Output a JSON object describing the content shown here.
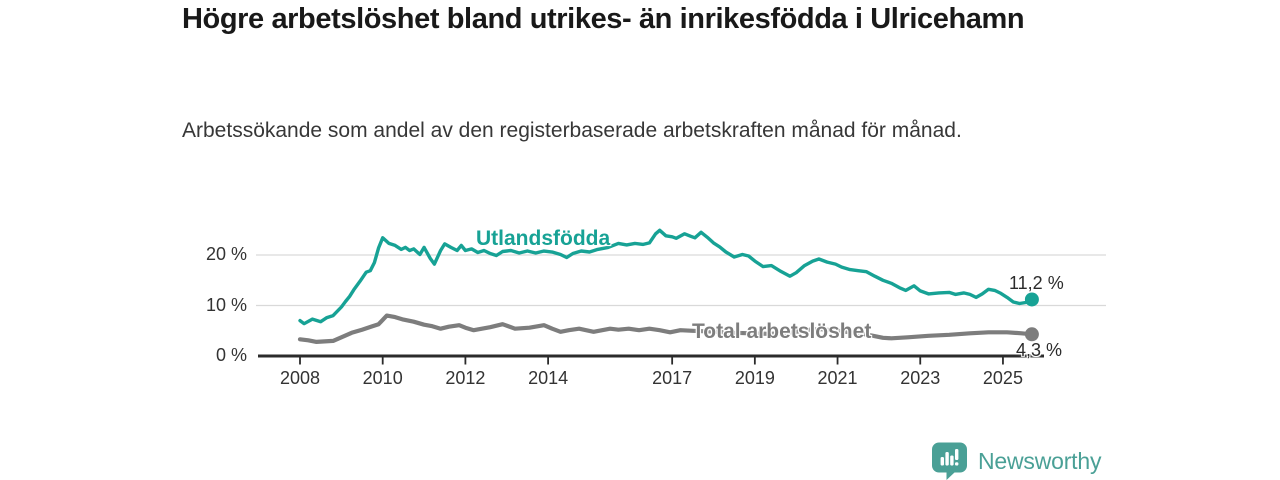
{
  "title": "Högre arbetslöshet bland utrikes- än inrikesfödda i Ulricehamn",
  "subtitle": "Arbetssökande som andel av den registerbaserade arbetskraften månad för månad.",
  "chart_data": {
    "type": "line",
    "title": "Högre arbetslöshet bland utrikes- än inrikesfödda i Ulricehamn",
    "subtitle": "Arbetssökande som andel av den registerbaserade arbetskraften månad för månad.",
    "unit": "percent of registered labour force",
    "legend_position": "inline-labels-on-lines",
    "grid": true,
    "x_axis": {
      "range": [
        2007.9,
        2025.85
      ],
      "ticks": [
        {
          "v": 2008,
          "label": "2008"
        },
        {
          "v": 2010,
          "label": "2010"
        },
        {
          "v": 2012,
          "label": "2012"
        },
        {
          "v": 2014,
          "label": "2014"
        },
        {
          "v": 2017,
          "label": "2017"
        },
        {
          "v": 2019,
          "label": "2019"
        },
        {
          "v": 2021,
          "label": "2021"
        },
        {
          "v": 2023,
          "label": "2023"
        },
        {
          "v": 2025,
          "label": "2025"
        }
      ]
    },
    "y_axis": {
      "range": [
        0,
        26
      ],
      "ticks": [
        {
          "v": 0,
          "label": "0 %"
        },
        {
          "v": 10,
          "label": "10 %"
        },
        {
          "v": 20,
          "label": "20 %"
        }
      ]
    },
    "series": [
      {
        "name": "Utlandsfödda",
        "color": "#17a295",
        "end_label": "11,2 %",
        "end_value": 11.2,
        "points": [
          [
            2008.0,
            7.0
          ],
          [
            2008.1,
            6.4
          ],
          [
            2008.3,
            7.3
          ],
          [
            2008.5,
            6.8
          ],
          [
            2008.65,
            7.6
          ],
          [
            2008.8,
            8.0
          ],
          [
            2009.0,
            9.7
          ],
          [
            2009.1,
            10.8
          ],
          [
            2009.2,
            11.8
          ],
          [
            2009.3,
            13.1
          ],
          [
            2009.45,
            14.8
          ],
          [
            2009.6,
            16.6
          ],
          [
            2009.7,
            16.9
          ],
          [
            2009.8,
            18.5
          ],
          [
            2009.9,
            21.4
          ],
          [
            2010.0,
            23.4
          ],
          [
            2010.15,
            22.3
          ],
          [
            2010.3,
            21.9
          ],
          [
            2010.45,
            21.1
          ],
          [
            2010.55,
            21.5
          ],
          [
            2010.65,
            20.9
          ],
          [
            2010.75,
            21.2
          ],
          [
            2010.9,
            20.1
          ],
          [
            2011.0,
            21.5
          ],
          [
            2011.15,
            19.3
          ],
          [
            2011.25,
            18.2
          ],
          [
            2011.4,
            20.9
          ],
          [
            2011.5,
            22.2
          ],
          [
            2011.65,
            21.5
          ],
          [
            2011.8,
            20.9
          ],
          [
            2011.9,
            21.9
          ],
          [
            2012.0,
            20.9
          ],
          [
            2012.15,
            21.2
          ],
          [
            2012.3,
            20.5
          ],
          [
            2012.45,
            20.9
          ],
          [
            2012.6,
            20.3
          ],
          [
            2012.75,
            19.9
          ],
          [
            2012.9,
            20.7
          ],
          [
            2013.1,
            20.9
          ],
          [
            2013.3,
            20.4
          ],
          [
            2013.5,
            20.8
          ],
          [
            2013.7,
            20.4
          ],
          [
            2013.9,
            20.8
          ],
          [
            2014.1,
            20.6
          ],
          [
            2014.3,
            20.1
          ],
          [
            2014.45,
            19.5
          ],
          [
            2014.6,
            20.3
          ],
          [
            2014.8,
            20.8
          ],
          [
            2015.0,
            20.6
          ],
          [
            2015.2,
            21.1
          ],
          [
            2015.45,
            21.5
          ],
          [
            2015.7,
            22.3
          ],
          [
            2015.9,
            22.0
          ],
          [
            2016.1,
            22.3
          ],
          [
            2016.3,
            22.1
          ],
          [
            2016.45,
            22.4
          ],
          [
            2016.6,
            24.2
          ],
          [
            2016.7,
            24.9
          ],
          [
            2016.85,
            23.8
          ],
          [
            2017.0,
            23.6
          ],
          [
            2017.1,
            23.3
          ],
          [
            2017.3,
            24.2
          ],
          [
            2017.45,
            23.7
          ],
          [
            2017.55,
            23.4
          ],
          [
            2017.7,
            24.5
          ],
          [
            2017.85,
            23.5
          ],
          [
            2018.0,
            22.4
          ],
          [
            2018.15,
            21.6
          ],
          [
            2018.3,
            20.6
          ],
          [
            2018.5,
            19.6
          ],
          [
            2018.7,
            20.1
          ],
          [
            2018.85,
            19.8
          ],
          [
            2019.0,
            18.8
          ],
          [
            2019.2,
            17.7
          ],
          [
            2019.4,
            17.9
          ],
          [
            2019.6,
            16.9
          ],
          [
            2019.85,
            15.8
          ],
          [
            2020.0,
            16.5
          ],
          [
            2020.2,
            17.9
          ],
          [
            2020.4,
            18.8
          ],
          [
            2020.55,
            19.2
          ],
          [
            2020.75,
            18.6
          ],
          [
            2020.95,
            18.2
          ],
          [
            2021.1,
            17.6
          ],
          [
            2021.3,
            17.1
          ],
          [
            2021.5,
            16.9
          ],
          [
            2021.7,
            16.7
          ],
          [
            2021.9,
            15.8
          ],
          [
            2022.1,
            15.0
          ],
          [
            2022.3,
            14.4
          ],
          [
            2022.5,
            13.5
          ],
          [
            2022.65,
            13.0
          ],
          [
            2022.85,
            13.9
          ],
          [
            2023.0,
            12.9
          ],
          [
            2023.2,
            12.3
          ],
          [
            2023.45,
            12.5
          ],
          [
            2023.7,
            12.6
          ],
          [
            2023.85,
            12.2
          ],
          [
            2024.05,
            12.5
          ],
          [
            2024.2,
            12.2
          ],
          [
            2024.35,
            11.6
          ],
          [
            2024.5,
            12.3
          ],
          [
            2024.65,
            13.2
          ],
          [
            2024.8,
            13.0
          ],
          [
            2024.95,
            12.4
          ],
          [
            2025.1,
            11.6
          ],
          [
            2025.25,
            10.7
          ],
          [
            2025.4,
            10.4
          ],
          [
            2025.55,
            10.6
          ],
          [
            2025.7,
            11.2
          ]
        ]
      },
      {
        "name": "Total arbetslöshet",
        "color": "#7d7d7d",
        "end_label": "4,3 %",
        "end_value": 4.3,
        "points": [
          [
            2008.0,
            3.3
          ],
          [
            2008.2,
            3.1
          ],
          [
            2008.4,
            2.8
          ],
          [
            2008.6,
            2.9
          ],
          [
            2008.8,
            3.0
          ],
          [
            2009.0,
            3.7
          ],
          [
            2009.25,
            4.6
          ],
          [
            2009.5,
            5.2
          ],
          [
            2009.75,
            5.9
          ],
          [
            2009.9,
            6.3
          ],
          [
            2010.1,
            8.0
          ],
          [
            2010.3,
            7.7
          ],
          [
            2010.5,
            7.2
          ],
          [
            2010.75,
            6.8
          ],
          [
            2011.0,
            6.2
          ],
          [
            2011.2,
            5.9
          ],
          [
            2011.4,
            5.4
          ],
          [
            2011.6,
            5.8
          ],
          [
            2011.85,
            6.1
          ],
          [
            2012.0,
            5.6
          ],
          [
            2012.2,
            5.1
          ],
          [
            2012.4,
            5.4
          ],
          [
            2012.6,
            5.7
          ],
          [
            2012.9,
            6.3
          ],
          [
            2013.2,
            5.4
          ],
          [
            2013.55,
            5.6
          ],
          [
            2013.9,
            6.1
          ],
          [
            2014.1,
            5.4
          ],
          [
            2014.3,
            4.8
          ],
          [
            2014.5,
            5.1
          ],
          [
            2014.75,
            5.4
          ],
          [
            2015.1,
            4.8
          ],
          [
            2015.5,
            5.4
          ],
          [
            2015.7,
            5.2
          ],
          [
            2015.95,
            5.4
          ],
          [
            2016.2,
            5.1
          ],
          [
            2016.45,
            5.4
          ],
          [
            2016.7,
            5.1
          ],
          [
            2016.95,
            4.7
          ],
          [
            2017.2,
            5.1
          ],
          [
            2017.5,
            5.0
          ],
          [
            2017.8,
            4.9
          ],
          [
            2018.1,
            4.8
          ],
          [
            2018.5,
            4.6
          ],
          [
            2018.9,
            4.5
          ],
          [
            2019.3,
            4.4
          ],
          [
            2019.7,
            4.5
          ],
          [
            2020.0,
            4.8
          ],
          [
            2020.3,
            5.2
          ],
          [
            2020.6,
            5.3
          ],
          [
            2021.0,
            5.0
          ],
          [
            2021.4,
            4.6
          ],
          [
            2021.8,
            4.1
          ],
          [
            2022.1,
            3.6
          ],
          [
            2022.3,
            3.5
          ],
          [
            2022.7,
            3.7
          ],
          [
            2023.2,
            4.0
          ],
          [
            2023.7,
            4.2
          ],
          [
            2024.2,
            4.5
          ],
          [
            2024.65,
            4.7
          ],
          [
            2025.1,
            4.7
          ],
          [
            2025.45,
            4.5
          ],
          [
            2025.7,
            4.3
          ]
        ]
      }
    ]
  },
  "logo": {
    "text": "Newsworthy",
    "icon": "bar-chart-speech-bubble",
    "color": "#4aa096"
  },
  "colors": {
    "accent_teal": "#17a295",
    "series_gray": "#7d7d7d",
    "axis": "#2b2b2b",
    "gridline": "#d9d9d9"
  }
}
